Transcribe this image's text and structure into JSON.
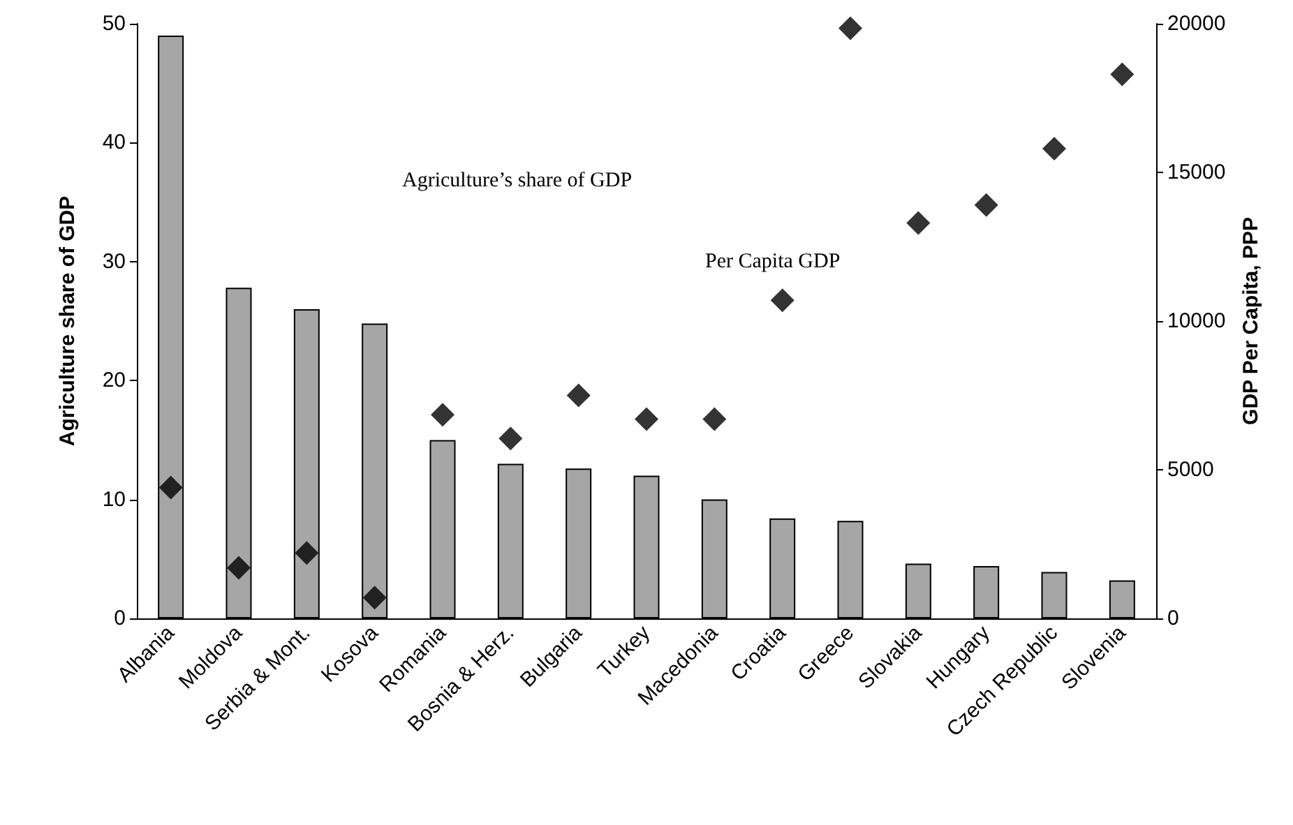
{
  "chart_data": {
    "type": "bar",
    "ylabel": "Agriculture share of GDP",
    "y2label": "GDP Per Capita, PPP",
    "categories": [
      "Albania",
      "Moldova",
      "Serbia & Mont.",
      "Kosova",
      "Romania",
      "Bosnia & Herz.",
      "Bulgaria",
      "Turkey",
      "Macedonia",
      "Croatia",
      "Greece",
      "Slovakia",
      "Hungary",
      "Czech Republic",
      "Slovenia"
    ],
    "series": [
      {
        "color": "#a6a6a6",
        "values": [
          49,
          27.8,
          26,
          24.8,
          15,
          13,
          12.6,
          12,
          10,
          8.4,
          8.2,
          4.6,
          4.4,
          3.9,
          3.2
        ]
      },
      {
        "type": "scatter",
        "axis": "y2",
        "color": "#000000",
        "marker": "diamond",
        "values": [
          4400,
          1700,
          2200,
          700,
          6850,
          6050,
          7500,
          6700,
          6700,
          10700,
          19850,
          13300,
          13900,
          15800,
          18300
        ]
      }
    ],
    "ylim": [
      0,
      50
    ],
    "yticks": [
      0,
      10,
      20,
      30,
      40,
      50
    ],
    "y2lim": [
      0,
      20000
    ],
    "y2ticks": [
      0,
      5000,
      10000,
      15000,
      20000
    ],
    "annotations": [
      "Agriculture’s share of GDP",
      "Per Capita GDP"
    ]
  }
}
